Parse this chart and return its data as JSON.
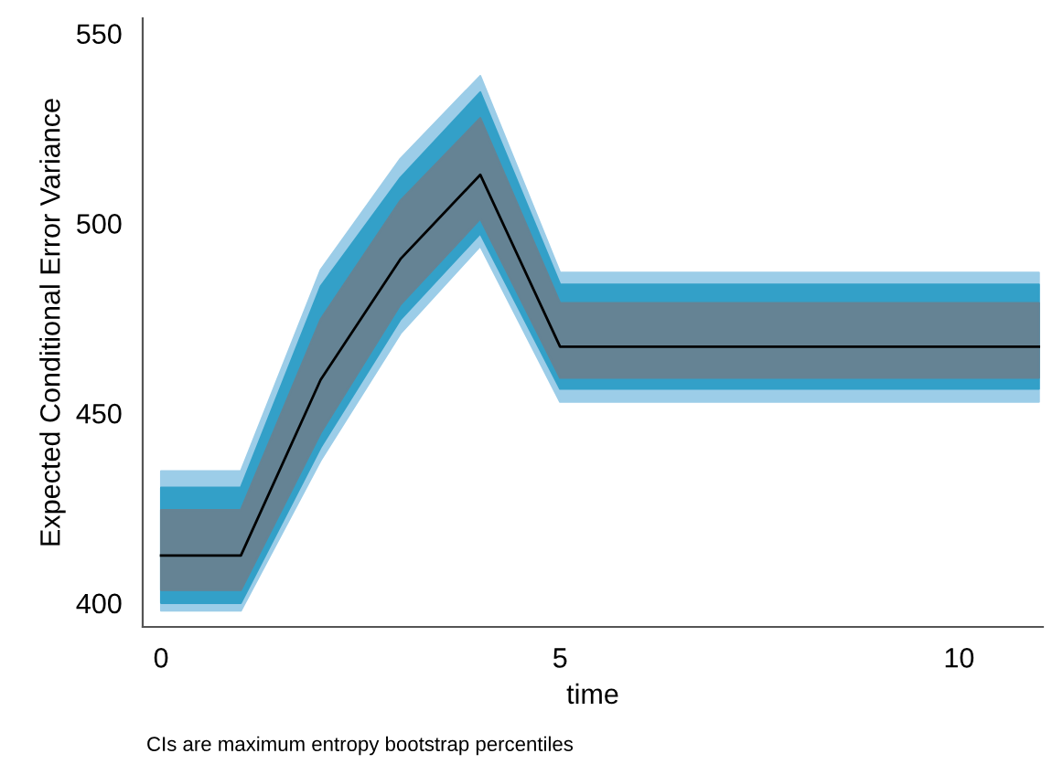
{
  "chart_data": {
    "type": "line",
    "xlabel": "time",
    "ylabel": "Expected Conditional Error Variance",
    "x": [
      0,
      1,
      2,
      3,
      4,
      5,
      6,
      7,
      8,
      9,
      10,
      11
    ],
    "series": [
      {
        "color": "#9ccde8",
        "values": [
          null,
          null,
          null,
          null,
          null,
          null,
          null,
          null,
          null,
          null,
          null,
          null
        ],
        "lower": [
          398,
          398,
          437.6,
          471,
          494,
          453,
          453,
          453,
          453,
          453,
          453,
          453
        ],
        "upper": [
          434.7,
          434.7,
          487.7,
          517,
          538.8,
          487,
          487,
          487,
          487,
          487,
          487,
          487
        ]
      },
      {
        "color": "#33a0c8",
        "values": [
          null,
          null,
          null,
          null,
          null,
          null,
          null,
          null,
          null,
          null,
          null,
          null
        ],
        "lower": [
          400,
          400,
          441,
          474.7,
          497.3,
          456.4,
          456.4,
          456.4,
          456.4,
          456.4,
          456.4,
          456.4
        ],
        "upper": [
          430.4,
          430.4,
          483.4,
          512,
          534.5,
          483.9,
          483.9,
          483.9,
          483.9,
          483.9,
          483.9,
          483.9
        ]
      },
      {
        "color": "#658394",
        "values": [
          null,
          null,
          null,
          null,
          null,
          null,
          null,
          null,
          null,
          null,
          null,
          null
        ],
        "lower": [
          403.4,
          403.4,
          444.8,
          478.6,
          501.2,
          459.3,
          459.3,
          459.3,
          459.3,
          459.3,
          459.3,
          459.3
        ],
        "upper": [
          424.5,
          424.5,
          474.7,
          506,
          527.7,
          479,
          479,
          479,
          479,
          479,
          479,
          479
        ]
      },
      {
        "color": "#000000",
        "values": [
          412.5,
          412.5,
          458.8,
          490.6,
          512.8,
          467.5,
          467.5,
          467.5,
          467.5,
          467.5,
          467.5,
          467.5
        ]
      }
    ],
    "xlim": [
      -0.23,
      11.05
    ],
    "ylim": [
      393.7,
      554
    ],
    "xticks": [
      0,
      5,
      10
    ],
    "yticks": [
      400,
      450,
      500,
      550
    ],
    "annotations": [
      "CIs are maximum entropy bootstrap percentiles"
    ]
  }
}
